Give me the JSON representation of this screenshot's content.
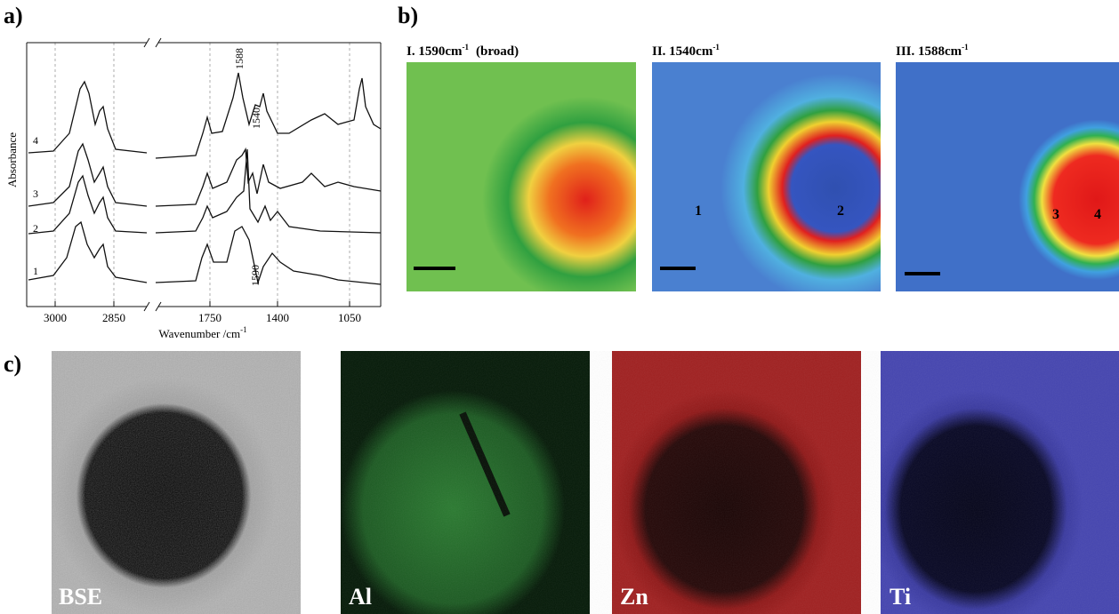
{
  "panel_a": {
    "label": "a)",
    "y_axis_label": "Absorbance",
    "x_axis_label": "Wavenumber /cm",
    "x_axis_label_sup": "-1",
    "x_ticks": [
      "3000",
      "2850",
      "1750",
      "1400",
      "1050"
    ],
    "curve_labels": [
      "4",
      "3",
      "2",
      "1"
    ],
    "peak_labels": [
      "1588",
      "1540",
      "1590"
    ]
  },
  "panel_b": {
    "label": "b)",
    "maps": [
      {
        "title": "I. 1590cm",
        "title_sup": "-1",
        "title_note": "(broad)"
      },
      {
        "title": "II. 1540cm",
        "title_sup": "-1",
        "points": [
          "1",
          "2"
        ]
      },
      {
        "title": "III. 1588cm",
        "title_sup": "-1",
        "points": [
          "3",
          "4"
        ]
      }
    ]
  },
  "panel_c": {
    "label": "c)",
    "images": [
      "BSE",
      "Al",
      "Zn",
      "Ti"
    ]
  }
}
